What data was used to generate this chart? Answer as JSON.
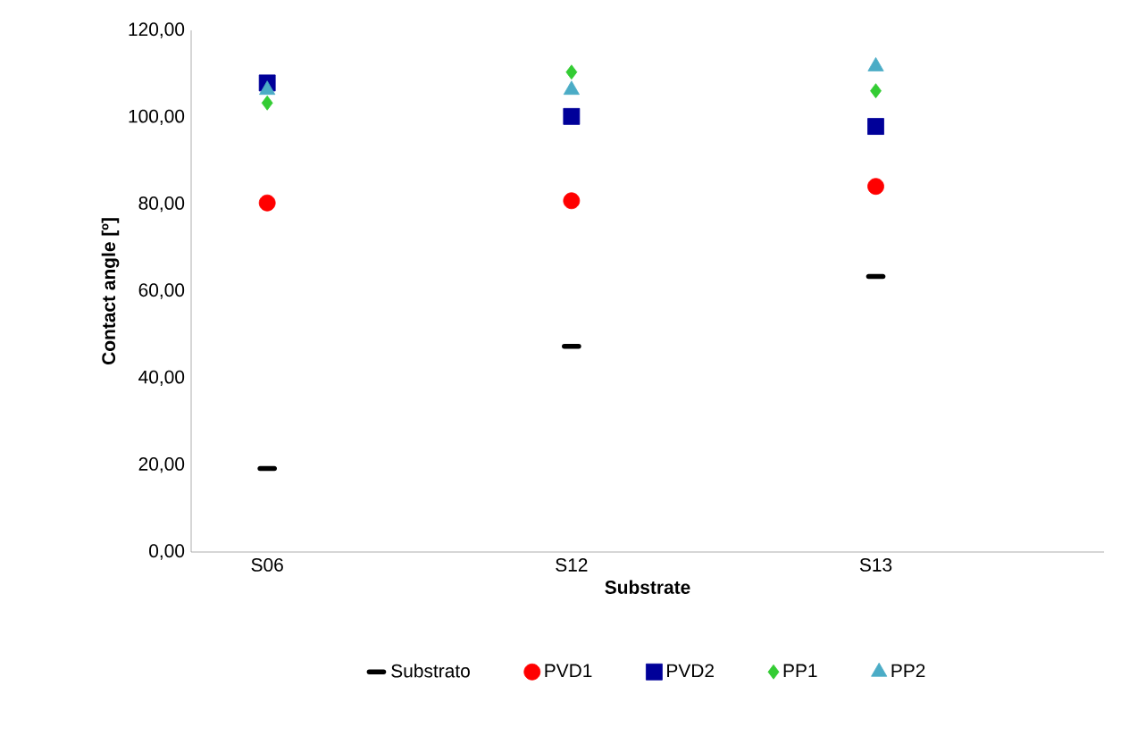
{
  "chart_data": {
    "type": "scatter",
    "xlabel": "Substrate",
    "ylabel": "Contact angle [º]",
    "categories": [
      "S06",
      "S12",
      "S13"
    ],
    "ylim": [
      0,
      120
    ],
    "yticks": [
      {
        "value": 0,
        "label": "0,00"
      },
      {
        "value": 20,
        "label": "20,00"
      },
      {
        "value": 40,
        "label": "40,00"
      },
      {
        "value": 60,
        "label": "60,00"
      },
      {
        "value": 80,
        "label": "80,00"
      },
      {
        "value": 100,
        "label": "100,00"
      },
      {
        "value": 120,
        "label": "120,00"
      }
    ],
    "grid": false,
    "legend": "bottom",
    "series": [
      {
        "name": "Substrato",
        "color": "#000000",
        "values": [
          19.2,
          47.3,
          63.4
        ]
      },
      {
        "name": "PVD1",
        "color": "#ff0000",
        "marker": "circle",
        "values": [
          80.3,
          80.8,
          84.1
        ]
      },
      {
        "name": "PVD2",
        "color": "#000099",
        "marker": "square",
        "values": [
          107.9,
          100.2,
          97.9
        ]
      },
      {
        "name": "PP1",
        "color": "#33cc33",
        "marker": "diamond",
        "values": [
          103.3,
          110.4,
          106.1
        ]
      },
      {
        "name": "PP2",
        "color": "#4bacc6",
        "marker": "triangle",
        "values": [
          106.3,
          106.3,
          111.7
        ]
      }
    ]
  }
}
